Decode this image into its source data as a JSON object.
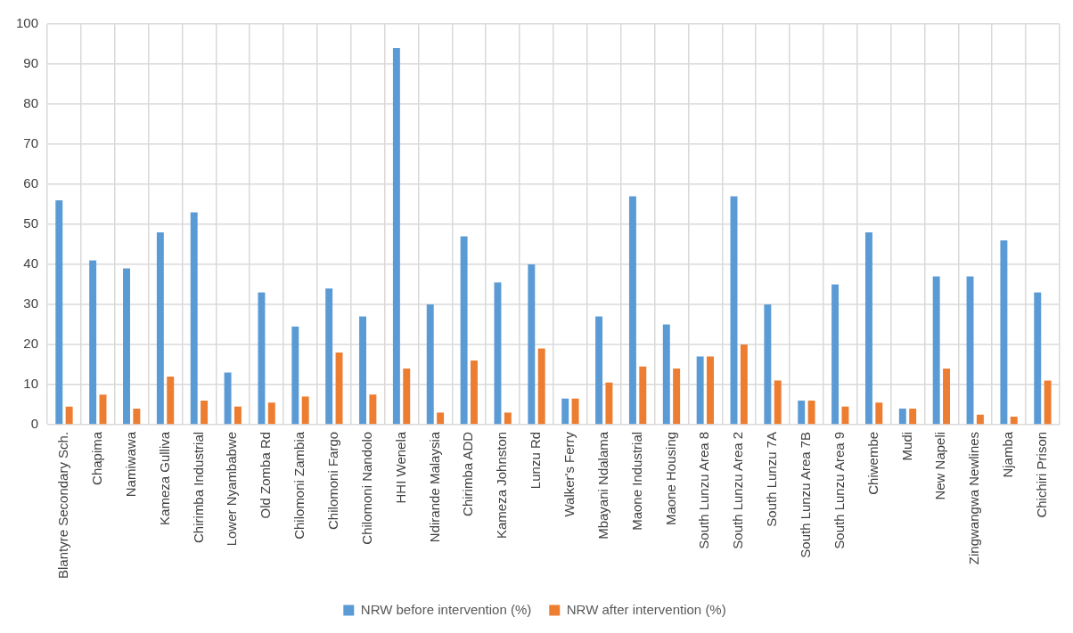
{
  "chart_data": {
    "type": "bar",
    "categories": [
      "Blantyre Secondary Sch.",
      "Chapima",
      "Namiwawa",
      "Kameza Gulliva",
      "Chirimba Industrial",
      "Lower Nyambabwe",
      "Old Zomba Rd",
      "Chilomoni Zambia",
      "Chilomoni Fargo",
      "Chilomoni Nandolo",
      "HHI Wenela",
      "Ndirande Malaysia",
      "Chirimba ADD",
      "Kameza Johnston",
      "Lunzu Rd",
      "Walker's Ferry",
      "Mbayani Ndalama",
      "Maone Industrial",
      "Maone Housing",
      "South Lunzu Area 8",
      "South Lunzu Area 2",
      "South Lunzu 7A",
      "South Lunzu Area 7B",
      "South Lunzu Area 9",
      "Chiwembe",
      "Mudi",
      "New Napeli",
      "Zingwangwa Newlines",
      "Njamba",
      "Chichiri Prison"
    ],
    "series": [
      {
        "name": "NRW before intervention (%)",
        "color": "#5b9bd5",
        "values": [
          56,
          41,
          39,
          48,
          53,
          13,
          33,
          24.5,
          34,
          27,
          94,
          30,
          47,
          35.5,
          40,
          6.5,
          27,
          57,
          25,
          17,
          57,
          30,
          6,
          35,
          48,
          4,
          37,
          37,
          46,
          33
        ]
      },
      {
        "name": "NRW after intervention (%)",
        "color": "#ed7d31",
        "values": [
          4.5,
          7.5,
          4,
          12,
          6,
          4.5,
          5.5,
          7,
          18,
          7.5,
          14,
          3,
          16,
          3,
          19,
          6.5,
          10.5,
          14.5,
          14,
          17,
          20,
          11,
          6,
          4.5,
          5.5,
          4,
          14,
          2.5,
          2,
          11
        ]
      }
    ],
    "ylim": [
      0,
      100
    ],
    "yticks": [
      0,
      10,
      20,
      30,
      40,
      50,
      60,
      70,
      80,
      90,
      100
    ],
    "grid": true,
    "legend": "bottom"
  }
}
